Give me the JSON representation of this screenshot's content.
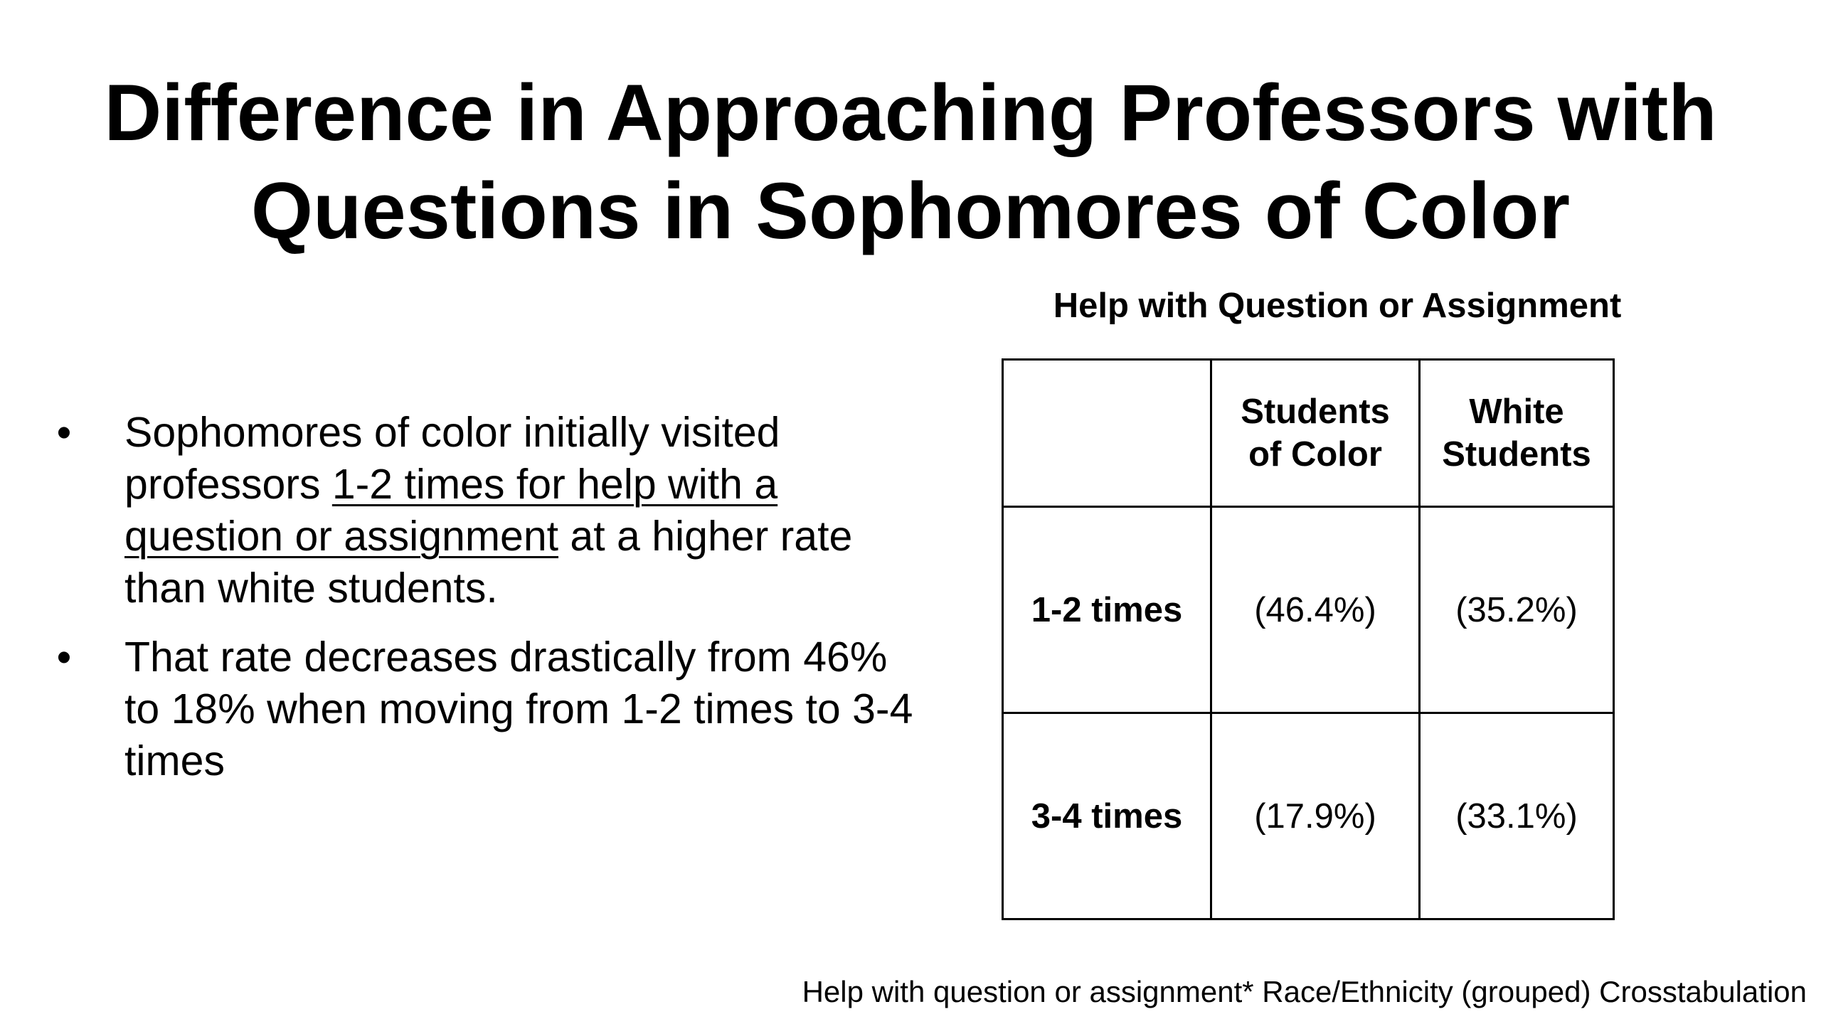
{
  "slide": {
    "title_line1": "Difference in Approaching Professors with",
    "title_line2": "Questions in Sophomores of Color",
    "bullet_symbol": "•",
    "bullets": [
      {
        "pre": "Sophomores of color initially visited professors ",
        "underlined": "1-2 times for help with a question or assignment",
        "post": " at a higher rate than white students."
      },
      {
        "text": "That rate decreases drastically from 46% to 18% when moving from 1-2 times to 3-4 times"
      }
    ],
    "table_caption": "Help with Question or Assignment",
    "table": {
      "corner": "",
      "col_headers": [
        {
          "line1": "Students",
          "line2": "of Color"
        },
        {
          "line1": "White",
          "line2": "Students"
        }
      ],
      "rows": [
        {
          "label": "1-2 times",
          "values": [
            "(46.4%)",
            "(35.2%)"
          ]
        },
        {
          "label": "3-4 times",
          "values": [
            "(17.9%)",
            "(33.1%)"
          ]
        }
      ]
    },
    "footnote": "Help with question or assignment* Race/Ethnicity (grouped) Crosstabulation"
  }
}
